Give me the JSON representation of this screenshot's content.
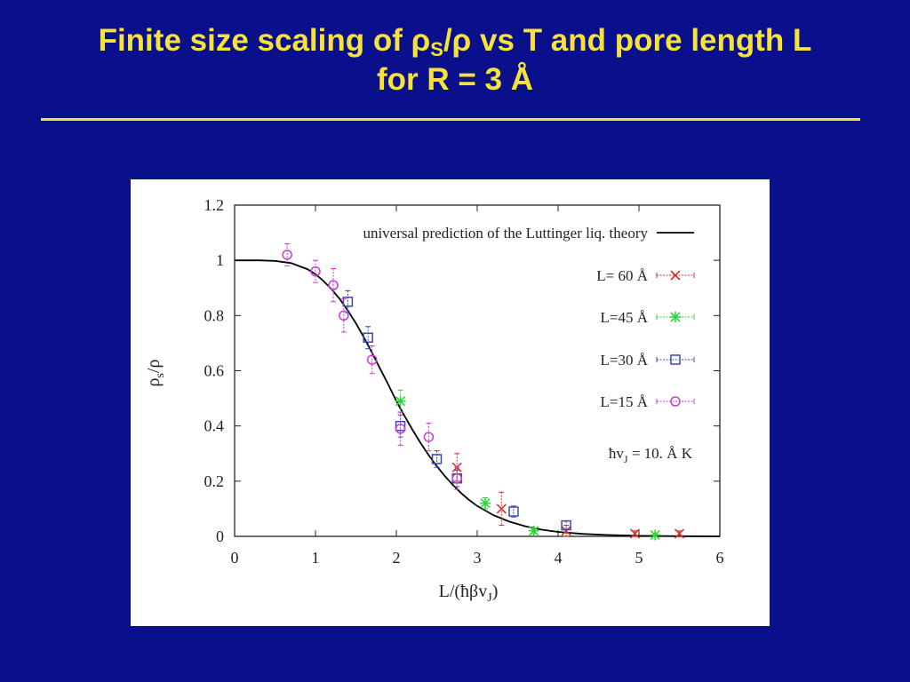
{
  "slide": {
    "title_part1": "Finite size scaling of ρ",
    "title_sub": "S",
    "title_part2": "/ρ vs T and pore length L",
    "title_line2": "for R = 3 Å"
  },
  "chart_data": {
    "type": "scatter",
    "title": "",
    "xlabel": "L/(ħβv",
    "xlabel_sub": "J",
    "xlabel_end": ")",
    "ylabel": "ρ",
    "ylabel_sub": "s",
    "ylabel_end": "/ρ",
    "xlim": [
      0,
      6
    ],
    "ylim": [
      0,
      1.2
    ],
    "x_ticks": [
      0,
      1,
      2,
      3,
      4,
      5,
      6
    ],
    "y_ticks": [
      0,
      0.2,
      0.4,
      0.6,
      0.8,
      1,
      1.2
    ],
    "x_tick_labels": [
      "0",
      "1",
      "2",
      "3",
      "4",
      "5",
      "6"
    ],
    "y_tick_labels": [
      "0",
      "0.2",
      "0.4",
      "0.6",
      "0.8",
      "1",
      "1.2"
    ],
    "grid": false,
    "legend_position": "top-right",
    "theory_curve": {
      "name": "universal prediction of the Luttinger liq. theory",
      "color": "#000000",
      "x": [
        0,
        0.3,
        0.5,
        0.7,
        0.9,
        1.0,
        1.1,
        1.2,
        1.3,
        1.4,
        1.5,
        1.6,
        1.7,
        1.8,
        1.9,
        2.0,
        2.1,
        2.2,
        2.3,
        2.4,
        2.5,
        2.6,
        2.7,
        2.8,
        2.9,
        3.0,
        3.2,
        3.4,
        3.6,
        3.8,
        4.0,
        4.3,
        4.6,
        5.0,
        5.5,
        6.0
      ],
      "y": [
        1.0,
        1.0,
        0.998,
        0.99,
        0.968,
        0.95,
        0.925,
        0.895,
        0.86,
        0.818,
        0.772,
        0.72,
        0.665,
        0.607,
        0.55,
        0.49,
        0.437,
        0.386,
        0.338,
        0.294,
        0.254,
        0.218,
        0.186,
        0.157,
        0.132,
        0.11,
        0.077,
        0.053,
        0.036,
        0.024,
        0.016,
        0.009,
        0.005,
        0.002,
        0.0005,
        0.0001
      ]
    },
    "series": [
      {
        "name": "L= 60 Å",
        "color": "#d6302b",
        "marker": "cross",
        "points": [
          {
            "x": 2.75,
            "y": 0.25,
            "err": 0.05
          },
          {
            "x": 3.3,
            "y": 0.1,
            "err": 0.06
          },
          {
            "x": 4.1,
            "y": 0.02,
            "err": 0.02
          },
          {
            "x": 4.95,
            "y": 0.01,
            "err": 0.01
          },
          {
            "x": 5.5,
            "y": 0.01,
            "err": 0.01
          }
        ]
      },
      {
        "name": "L=45 Å",
        "color": "#2ed63a",
        "marker": "star",
        "points": [
          {
            "x": 2.05,
            "y": 0.49,
            "err": 0.04
          },
          {
            "x": 3.1,
            "y": 0.12,
            "err": 0.02
          },
          {
            "x": 3.7,
            "y": 0.02,
            "err": 0.01
          },
          {
            "x": 5.2,
            "y": 0.005,
            "err": 0.005
          }
        ]
      },
      {
        "name": "L=30 Å",
        "color": "#3a47b8",
        "marker": "square",
        "points": [
          {
            "x": 1.4,
            "y": 0.85,
            "err": 0.04
          },
          {
            "x": 1.65,
            "y": 0.72,
            "err": 0.04
          },
          {
            "x": 2.05,
            "y": 0.4,
            "err": 0.04
          },
          {
            "x": 2.5,
            "y": 0.28,
            "err": 0.03
          },
          {
            "x": 2.75,
            "y": 0.21,
            "err": 0.03
          },
          {
            "x": 3.45,
            "y": 0.09,
            "err": 0.02
          },
          {
            "x": 4.1,
            "y": 0.04,
            "err": 0.015
          }
        ]
      },
      {
        "name": "L=15 Å",
        "color": "#c53ed1",
        "marker": "circle",
        "points": [
          {
            "x": 0.65,
            "y": 1.02,
            "err": 0.04
          },
          {
            "x": 1.0,
            "y": 0.96,
            "err": 0.04
          },
          {
            "x": 1.22,
            "y": 0.91,
            "err": 0.06
          },
          {
            "x": 1.35,
            "y": 0.8,
            "err": 0.06
          },
          {
            "x": 1.7,
            "y": 0.64,
            "err": 0.05
          },
          {
            "x": 2.05,
            "y": 0.39,
            "err": 0.06
          },
          {
            "x": 2.4,
            "y": 0.36,
            "err": 0.05
          },
          {
            "x": 2.75,
            "y": 0.21,
            "err": 0.04
          }
        ]
      }
    ],
    "annotation_part1": "ħv",
    "annotation_sub": "J",
    "annotation_part2": " = 10. Å K"
  }
}
